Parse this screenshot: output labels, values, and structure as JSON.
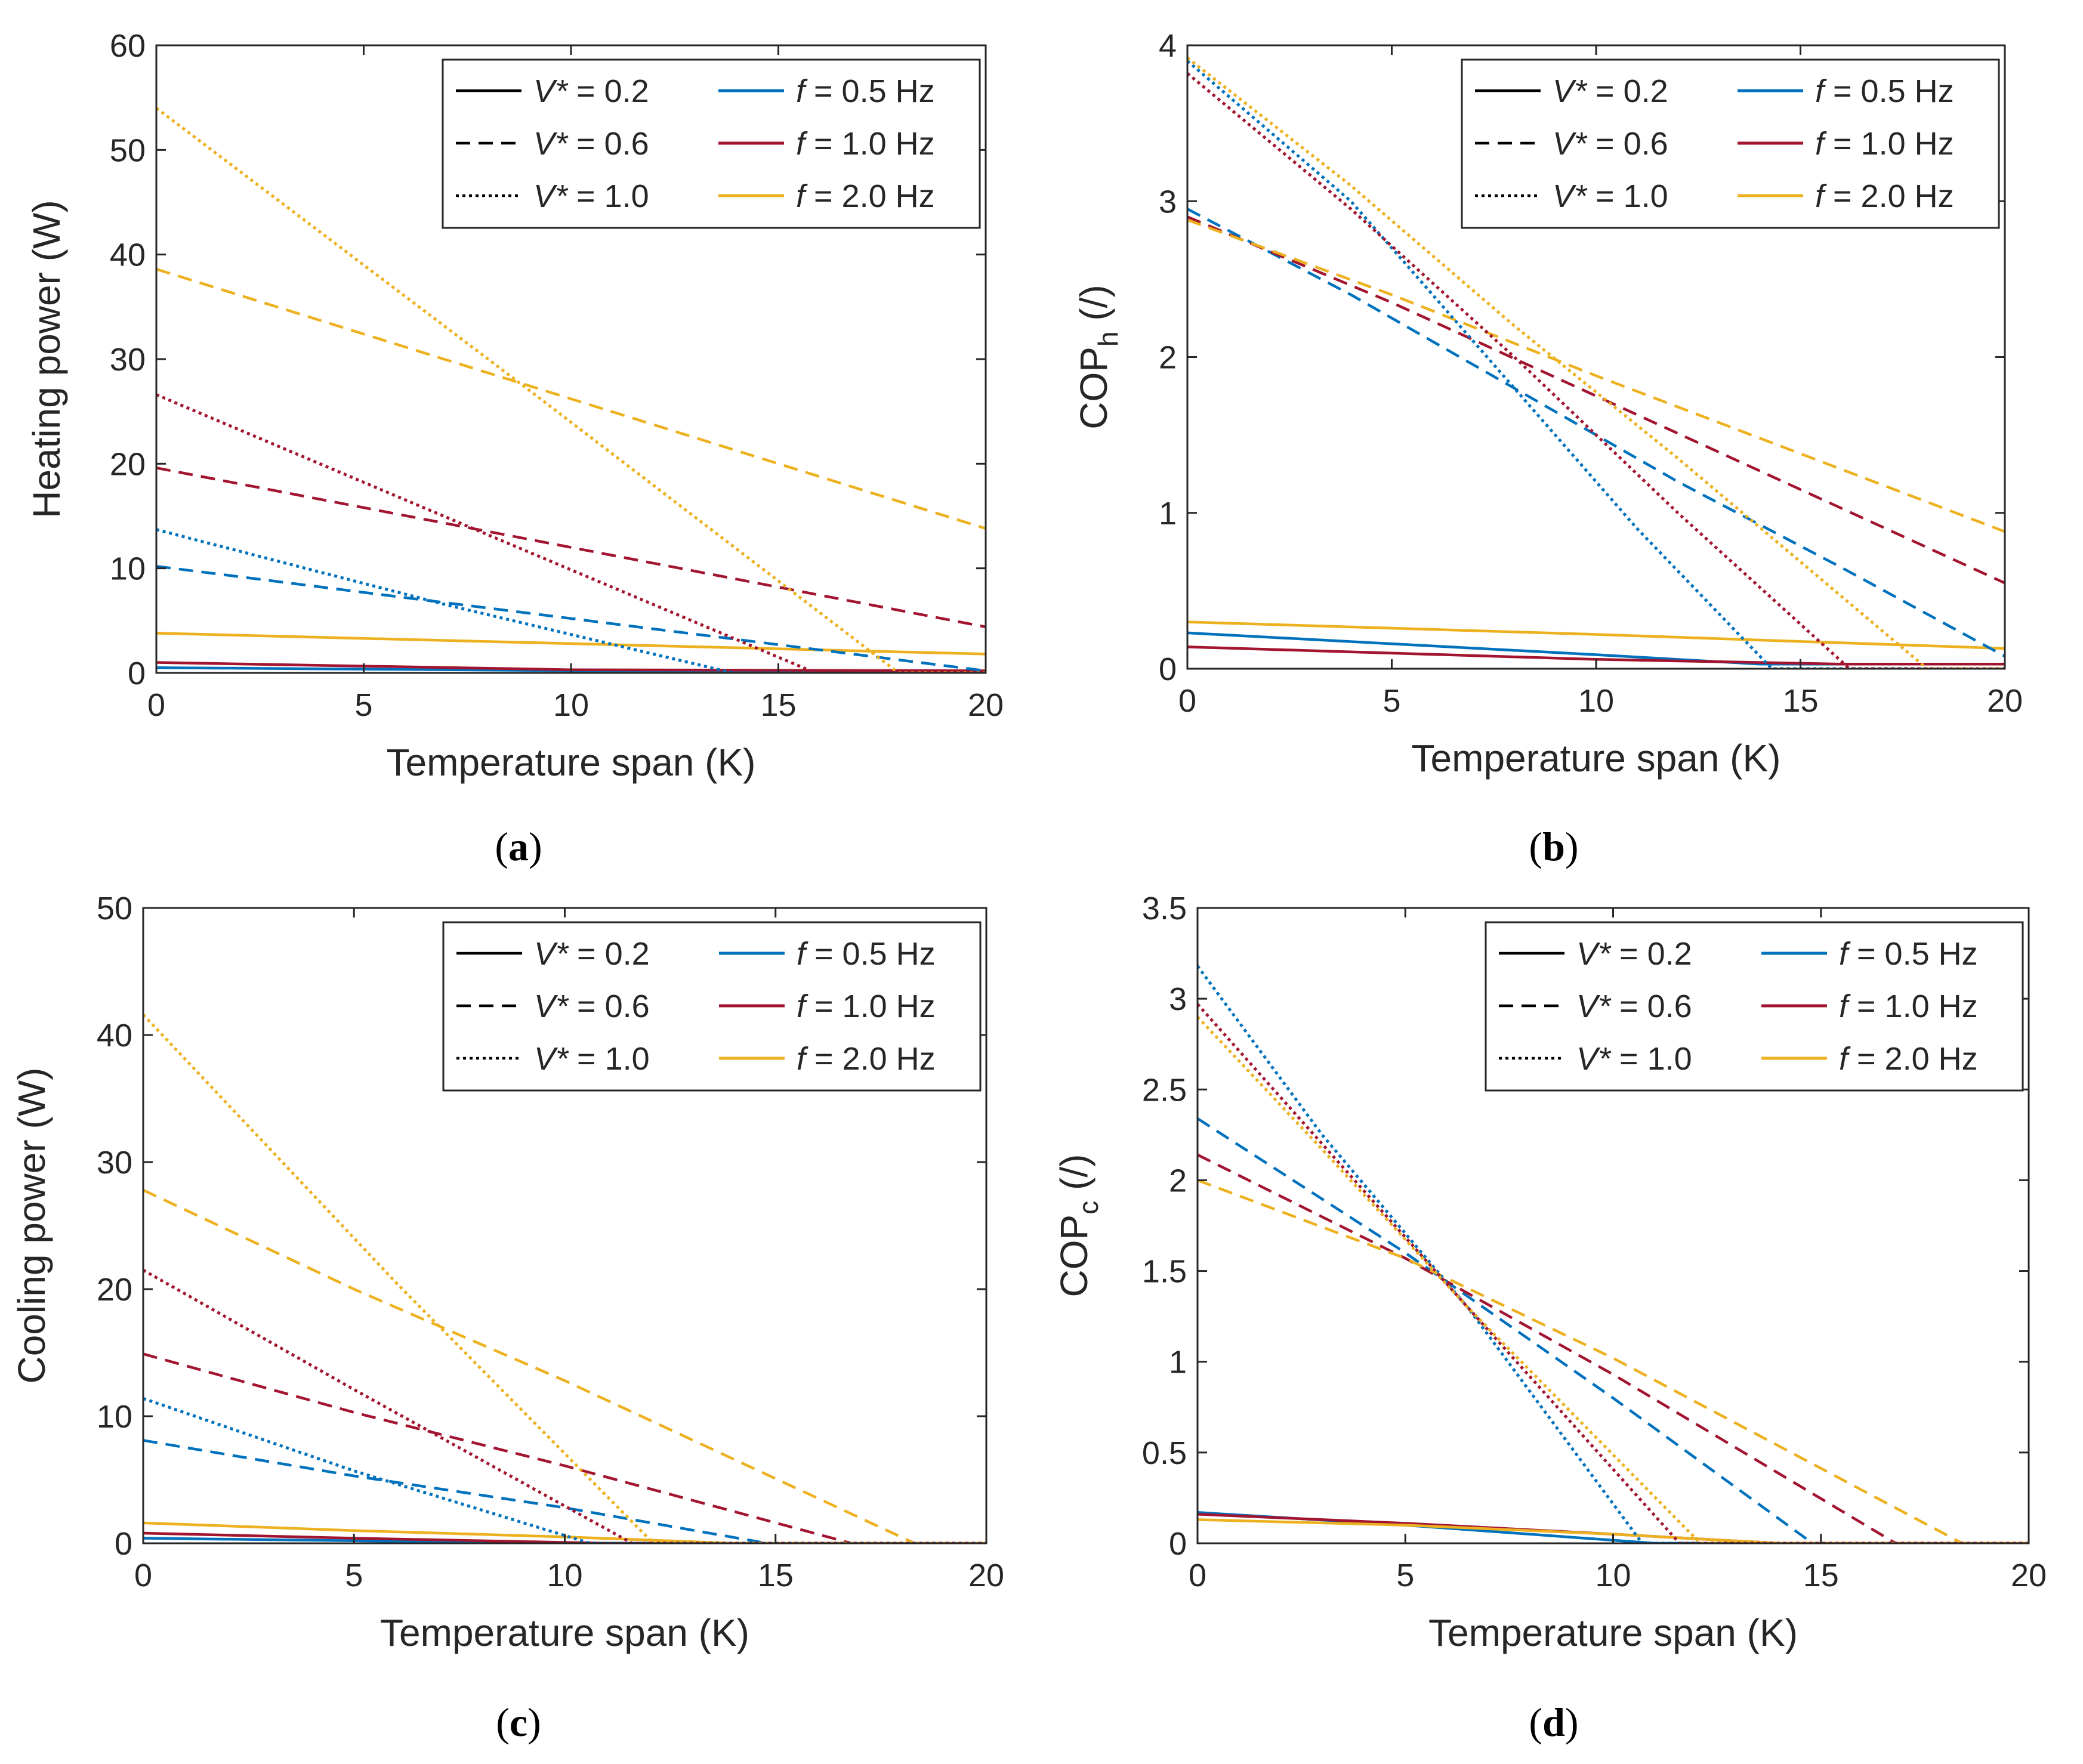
{
  "figure": {
    "captions": [
      "(a)",
      "(b)",
      "(c)",
      "(d)"
    ],
    "caption_letters": [
      "a",
      "b",
      "c",
      "d"
    ]
  },
  "legend": {
    "style_entries": [
      {
        "var": "V*",
        "text": " = 0.2",
        "dash": "solid"
      },
      {
        "var": "V*",
        "text": " = 0.6",
        "dash": "dashed"
      },
      {
        "var": "V*",
        "text": " = 1.0",
        "dash": "dotted"
      }
    ],
    "color_entries": [
      {
        "var": "f",
        "text": " = 0.5 Hz",
        "color": "#0072BD"
      },
      {
        "var": "f",
        "text": " = 1.0 Hz",
        "color": "#A2142F"
      },
      {
        "var": "f",
        "text": " = 2.0 Hz",
        "color": "#EDB120"
      }
    ]
  },
  "chart_data": [
    {
      "id": "a",
      "type": "line",
      "title": "",
      "caption": "(a)",
      "xlabel": "Temperature span (K)",
      "ylabel": "Heating power (W)",
      "ylabel_sub": "",
      "ylabel_tail": "",
      "xlim": [
        0,
        20
      ],
      "ylim": [
        0,
        60
      ],
      "xticks": [
        0,
        5,
        10,
        15,
        20
      ],
      "xtick_labels": [
        "0",
        "5",
        "10",
        "15",
        "20"
      ],
      "yticks": [
        0,
        10,
        20,
        30,
        40,
        50,
        60
      ],
      "ytick_labels": [
        "0",
        "10",
        "20",
        "30",
        "40",
        "50",
        "60"
      ],
      "legend_position": "top-right",
      "series": [
        {
          "name": "V* = 0.2, f = 0.5 Hz",
          "color": "#0072BD",
          "dash": "solid",
          "x": [
            0,
            14,
            20
          ],
          "y": [
            0.5,
            0.1,
            0.1
          ]
        },
        {
          "name": "V* = 0.2, f = 1.0 Hz",
          "color": "#A2142F",
          "dash": "solid",
          "x": [
            0,
            10,
            20
          ],
          "y": [
            1.0,
            0.3,
            0.2
          ]
        },
        {
          "name": "V* = 0.2, f = 2.0 Hz",
          "color": "#EDB120",
          "dash": "solid",
          "x": [
            0,
            10,
            20
          ],
          "y": [
            3.8,
            2.8,
            1.8
          ]
        },
        {
          "name": "V* = 0.6, f = 0.5 Hz",
          "color": "#0072BD",
          "dash": "dashed",
          "x": [
            0,
            10,
            20
          ],
          "y": [
            10.2,
            5.2,
            0.2
          ]
        },
        {
          "name": "V* = 0.6, f = 1.0 Hz",
          "color": "#A2142F",
          "dash": "dashed",
          "x": [
            0,
            10,
            20
          ],
          "y": [
            19.6,
            12.0,
            4.4
          ]
        },
        {
          "name": "V* = 0.6, f = 2.0 Hz",
          "color": "#EDB120",
          "dash": "dashed",
          "x": [
            0,
            10,
            20
          ],
          "y": [
            38.6,
            26.2,
            13.8
          ]
        },
        {
          "name": "V* = 1.0, f = 0.5 Hz",
          "color": "#0072BD",
          "dash": "dotted",
          "x": [
            0,
            7,
            13.9,
            20
          ],
          "y": [
            13.7,
            6.5,
            0,
            0
          ]
        },
        {
          "name": "V* = 1.0, f = 1.0 Hz",
          "color": "#A2142F",
          "dash": "dotted",
          "x": [
            0,
            8,
            15.9,
            20
          ],
          "y": [
            26.6,
            13.2,
            0,
            0
          ]
        },
        {
          "name": "V* = 1.0, f = 2.0 Hz",
          "color": "#EDB120",
          "dash": "dotted",
          "x": [
            0,
            9,
            17.9,
            20
          ],
          "y": [
            54.0,
            27.0,
            0,
            0
          ]
        }
      ]
    },
    {
      "id": "b",
      "type": "line",
      "title": "",
      "caption": "(b)",
      "xlabel": "Temperature span (K)",
      "ylabel": "COP",
      "ylabel_sub": "h",
      "ylabel_tail": " (/)",
      "xlim": [
        0,
        20
      ],
      "ylim": [
        0,
        4
      ],
      "xticks": [
        0,
        5,
        10,
        15,
        20
      ],
      "xtick_labels": [
        "0",
        "5",
        "10",
        "15",
        "20"
      ],
      "yticks": [
        0,
        1,
        2,
        3,
        4
      ],
      "ytick_labels": [
        "0",
        "1",
        "2",
        "3",
        "4"
      ],
      "legend_position": "top-right",
      "series": [
        {
          "name": "V* = 0.2, f = 0.5 Hz",
          "color": "#0072BD",
          "dash": "solid",
          "x": [
            0,
            10,
            14,
            20
          ],
          "y": [
            0.23,
            0.09,
            0.03,
            0.03
          ]
        },
        {
          "name": "V* = 0.2, f = 1.0 Hz",
          "color": "#A2142F",
          "dash": "solid",
          "x": [
            0,
            10,
            16,
            20
          ],
          "y": [
            0.14,
            0.06,
            0.03,
            0.03
          ]
        },
        {
          "name": "V* = 0.2, f = 2.0 Hz",
          "color": "#EDB120",
          "dash": "solid",
          "x": [
            0,
            10,
            20
          ],
          "y": [
            0.3,
            0.22,
            0.13
          ]
        },
        {
          "name": "V* = 0.6, f = 0.5 Hz",
          "color": "#0072BD",
          "dash": "dashed",
          "x": [
            0,
            4,
            8,
            12,
            16,
            20
          ],
          "y": [
            2.95,
            2.4,
            1.8,
            1.2,
            0.65,
            0.08
          ]
        },
        {
          "name": "V* = 0.6, f = 1.0 Hz",
          "color": "#A2142F",
          "dash": "dashed",
          "x": [
            0,
            5,
            10,
            15,
            20
          ],
          "y": [
            2.9,
            2.35,
            1.75,
            1.15,
            0.55
          ]
        },
        {
          "name": "V* = 0.6, f = 2.0 Hz",
          "color": "#EDB120",
          "dash": "dashed",
          "x": [
            0,
            5,
            10,
            15,
            20
          ],
          "y": [
            2.88,
            2.4,
            1.88,
            1.38,
            0.88
          ]
        },
        {
          "name": "V* = 1.0, f = 0.5 Hz",
          "color": "#0072BD",
          "dash": "dotted",
          "x": [
            0,
            4,
            8,
            11,
            14.3,
            20
          ],
          "y": [
            3.9,
            3.0,
            1.8,
            0.9,
            0.0,
            0.0
          ]
        },
        {
          "name": "V* = 1.0, f = 1.0 Hz",
          "color": "#A2142F",
          "dash": "dotted",
          "x": [
            0,
            4,
            8,
            12,
            16.2,
            20
          ],
          "y": [
            3.82,
            2.95,
            2.0,
            1.0,
            0.0,
            0.0
          ]
        },
        {
          "name": "V* = 1.0, f = 2.0 Hz",
          "color": "#EDB120",
          "dash": "dotted",
          "x": [
            0,
            4,
            8,
            12,
            18.1,
            20
          ],
          "y": [
            3.92,
            3.1,
            2.2,
            1.35,
            0.0,
            0.0
          ]
        }
      ]
    },
    {
      "id": "c",
      "type": "line",
      "title": "",
      "caption": "(c)",
      "xlabel": "Temperature span (K)",
      "ylabel": "Cooling power (W)",
      "ylabel_sub": "",
      "ylabel_tail": "",
      "xlim": [
        0,
        20
      ],
      "ylim": [
        0,
        50
      ],
      "xticks": [
        0,
        5,
        10,
        15,
        20
      ],
      "xtick_labels": [
        "0",
        "5",
        "10",
        "15",
        "20"
      ],
      "yticks": [
        0,
        10,
        20,
        30,
        40,
        50
      ],
      "ytick_labels": [
        "0",
        "10",
        "20",
        "30",
        "40",
        "50"
      ],
      "legend_position": "top-right",
      "series": [
        {
          "name": "V* = 0.2, f = 0.5 Hz",
          "color": "#0072BD",
          "dash": "solid",
          "x": [
            0,
            5,
            10,
            20
          ],
          "y": [
            0.4,
            0.2,
            0.0,
            0.0
          ]
        },
        {
          "name": "V* = 0.2, f = 1.0 Hz",
          "color": "#A2142F",
          "dash": "solid",
          "x": [
            0,
            5,
            11,
            20
          ],
          "y": [
            0.8,
            0.4,
            0.0,
            0.0
          ]
        },
        {
          "name": "V* = 0.2, f = 2.0 Hz",
          "color": "#EDB120",
          "dash": "solid",
          "x": [
            0,
            5,
            10,
            14,
            20
          ],
          "y": [
            1.6,
            1.0,
            0.5,
            0.0,
            0.0
          ]
        },
        {
          "name": "V* = 0.6, f = 0.5 Hz",
          "color": "#0072BD",
          "dash": "dashed",
          "x": [
            0,
            5,
            10,
            14.8,
            20
          ],
          "y": [
            8.1,
            5.3,
            2.8,
            0.0,
            0.0
          ]
        },
        {
          "name": "V* = 0.6, f = 1.0 Hz",
          "color": "#A2142F",
          "dash": "dashed",
          "x": [
            0,
            5,
            10,
            16.8,
            20
          ],
          "y": [
            14.9,
            10.3,
            6.1,
            0.0,
            0.0
          ]
        },
        {
          "name": "V* = 0.6, f = 2.0 Hz",
          "color": "#EDB120",
          "dash": "dashed",
          "x": [
            0,
            5,
            10,
            18.3,
            20
          ],
          "y": [
            27.8,
            20.0,
            12.8,
            0.0,
            0.0
          ]
        },
        {
          "name": "V* = 1.0, f = 0.5 Hz",
          "color": "#0072BD",
          "dash": "dotted",
          "x": [
            0,
            5,
            10.6,
            20
          ],
          "y": [
            11.4,
            5.7,
            0.0,
            0.0
          ]
        },
        {
          "name": "V* = 1.0, f = 1.0 Hz",
          "color": "#A2142F",
          "dash": "dotted",
          "x": [
            0,
            5,
            11.6,
            20
          ],
          "y": [
            21.5,
            12.1,
            0.0,
            0.0
          ]
        },
        {
          "name": "V* = 1.0, f = 2.0 Hz",
          "color": "#EDB120",
          "dash": "dotted",
          "x": [
            0,
            6,
            12.1,
            20
          ],
          "y": [
            41.6,
            20.5,
            0.0,
            0.0
          ]
        }
      ]
    },
    {
      "id": "d",
      "type": "line",
      "title": "",
      "caption": "(d)",
      "xlabel": "Temperature span (K)",
      "ylabel": "COP",
      "ylabel_sub": "c",
      "ylabel_tail": " (/)",
      "xlim": [
        0,
        20
      ],
      "ylim": [
        0,
        3.5
      ],
      "xticks": [
        0,
        5,
        10,
        15,
        20
      ],
      "xtick_labels": [
        "0",
        "5",
        "10",
        "15",
        "20"
      ],
      "yticks": [
        0,
        0.5,
        1,
        1.5,
        2,
        2.5,
        3,
        3.5
      ],
      "ytick_labels": [
        "0",
        "0.5",
        "1",
        "1.5",
        "2",
        "2.5",
        "3",
        "3.5"
      ],
      "legend_position": "top-right",
      "series": [
        {
          "name": "V* = 0.2, f = 0.5 Hz",
          "color": "#0072BD",
          "dash": "solid",
          "x": [
            0,
            5,
            11,
            20
          ],
          "y": [
            0.17,
            0.1,
            0.0,
            0.0
          ]
        },
        {
          "name": "V* = 0.2, f = 1.0 Hz",
          "color": "#A2142F",
          "dash": "solid",
          "x": [
            0,
            5,
            10,
            14,
            20
          ],
          "y": [
            0.16,
            0.11,
            0.05,
            0.0,
            0.0
          ]
        },
        {
          "name": "V* = 0.2, f = 2.0 Hz",
          "color": "#EDB120",
          "dash": "solid",
          "x": [
            0,
            5,
            10,
            14,
            20
          ],
          "y": [
            0.13,
            0.1,
            0.05,
            0.0,
            0.0
          ]
        },
        {
          "name": "V* = 0.6, f = 0.5 Hz",
          "color": "#0072BD",
          "dash": "dashed",
          "x": [
            0,
            5,
            10,
            14.8,
            20
          ],
          "y": [
            2.34,
            1.6,
            0.8,
            0.0,
            0.0
          ]
        },
        {
          "name": "V* = 0.6, f = 1.0 Hz",
          "color": "#A2142F",
          "dash": "dashed",
          "x": [
            0,
            5,
            10,
            16.8,
            20
          ],
          "y": [
            2.14,
            1.57,
            0.93,
            0.0,
            0.0
          ]
        },
        {
          "name": "V* = 0.6, f = 2.0 Hz",
          "color": "#EDB120",
          "dash": "dashed",
          "x": [
            0,
            5,
            10,
            18.4,
            20
          ],
          "y": [
            2.0,
            1.57,
            1.02,
            0.0,
            0.0
          ]
        },
        {
          "name": "V* = 1.0, f = 0.5 Hz",
          "color": "#0072BD",
          "dash": "dotted",
          "x": [
            0,
            3,
            6.5,
            10.7,
            20
          ],
          "y": [
            3.18,
            2.25,
            1.3,
            0.0,
            0.0
          ]
        },
        {
          "name": "V* = 1.0, f = 1.0 Hz",
          "color": "#A2142F",
          "dash": "dotted",
          "x": [
            0,
            3,
            6.5,
            11.6,
            20
          ],
          "y": [
            2.97,
            2.2,
            1.3,
            0.0,
            0.0
          ]
        },
        {
          "name": "V* = 1.0, f = 2.0 Hz",
          "color": "#EDB120",
          "dash": "dotted",
          "x": [
            0,
            3,
            6.5,
            12.1,
            20
          ],
          "y": [
            2.9,
            2.17,
            1.3,
            0.0,
            0.0
          ]
        }
      ]
    }
  ]
}
